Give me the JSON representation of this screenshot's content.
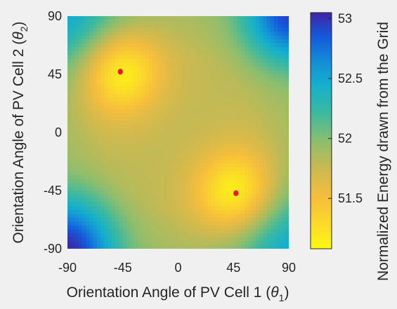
{
  "chart_data": {
    "type": "heatmap",
    "xlabel": "Orientation Angle of PV Cell 1 (",
    "xlabel_symbol": "θ",
    "xlabel_sub": "1",
    "xlabel_close": ")",
    "ylabel": "Orientation Angle of PV Cell 2 (",
    "ylabel_symbol": "θ",
    "ylabel_sub": "2",
    "ylabel_close": ")",
    "colorbar_label": "Normalized Energy drawn from the Grid",
    "xlim": [
      -90,
      90
    ],
    "ylim": [
      -90,
      90
    ],
    "x_ticks": [
      "-90",
      "-45",
      "0",
      "45",
      "90"
    ],
    "y_ticks": [
      "90",
      "45",
      "0",
      "-45",
      "-90"
    ],
    "colorbar_range": [
      51.08,
      53.05
    ],
    "colorbar_ticks": [
      "53",
      "52.5",
      "52",
      "51.5"
    ],
    "colormap": "parula (reversed: yellow = low, dark blue = high)",
    "minima_points": [
      {
        "x": -47,
        "y": 47
      },
      {
        "x": 47,
        "y": -47
      }
    ],
    "marker_color": "#e8192c",
    "grid": false,
    "colorbar_position": "right"
  }
}
